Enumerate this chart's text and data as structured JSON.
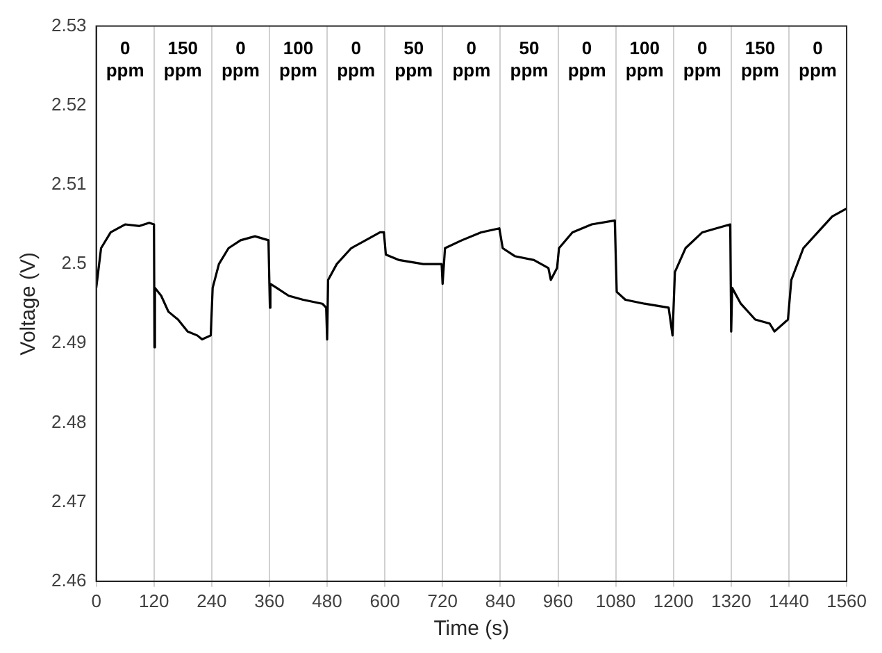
{
  "chart_data": {
    "type": "line",
    "xlabel": "Time (s)",
    "ylabel": "Voltage (V)",
    "xlim": [
      0,
      1560
    ],
    "xticks": [
      0,
      120,
      240,
      360,
      480,
      600,
      720,
      840,
      960,
      1080,
      1200,
      1320,
      1440,
      1560
    ],
    "ylim": [
      2.46,
      2.53
    ],
    "yticks": [
      2.46,
      2.47,
      2.48,
      2.49,
      2.5,
      2.51,
      2.52,
      2.53
    ],
    "grid": "x",
    "legend": false,
    "marker": "none",
    "line_style": "solid",
    "series": [
      {
        "color": "#000000",
        "x": [
          0,
          10,
          30,
          60,
          90,
          110,
          120,
          121,
          122,
          135,
          150,
          170,
          190,
          210,
          220,
          238,
          242,
          255,
          275,
          300,
          330,
          358,
          361,
          362,
          375,
          400,
          430,
          470,
          478,
          480,
          482,
          500,
          530,
          560,
          590,
          598,
          602,
          630,
          680,
          718,
          720,
          725,
          760,
          800,
          838,
          845,
          870,
          910,
          940,
          945,
          958,
          962,
          990,
          1030,
          1078,
          1082,
          1100,
          1140,
          1190,
          1198,
          1203,
          1225,
          1260,
          1318,
          1320,
          1322,
          1340,
          1370,
          1400,
          1410,
          1438,
          1445,
          1470,
          1500,
          1530,
          1560
        ],
        "values": [
          2.497,
          2.502,
          2.504,
          2.505,
          2.5048,
          2.5052,
          2.505,
          2.4895,
          2.497,
          2.496,
          2.494,
          2.493,
          2.4915,
          2.491,
          2.4905,
          2.491,
          2.497,
          2.5,
          2.502,
          2.503,
          2.5035,
          2.503,
          2.4945,
          2.4975,
          2.497,
          2.496,
          2.4955,
          2.495,
          2.4945,
          2.4905,
          2.498,
          2.5,
          2.502,
          2.503,
          2.504,
          2.504,
          2.5012,
          2.5005,
          2.5,
          2.5,
          2.4975,
          2.502,
          2.503,
          2.504,
          2.5045,
          2.502,
          2.501,
          2.5005,
          2.4995,
          2.498,
          2.4995,
          2.502,
          2.504,
          2.505,
          2.5055,
          2.4965,
          2.4955,
          2.495,
          2.4945,
          2.491,
          2.499,
          2.502,
          2.504,
          2.505,
          2.4915,
          2.497,
          2.495,
          2.493,
          2.4925,
          2.4915,
          2.493,
          2.498,
          2.502,
          2.504,
          2.506,
          2.507
        ]
      }
    ],
    "annotations": [
      "0 ppm",
      "150 ppm",
      "0 ppm",
      "100 ppm",
      "0 ppm",
      "50 ppm",
      "0 ppm",
      "50 ppm",
      "0 ppm",
      "100 ppm",
      "0 ppm",
      "150 ppm",
      "0 ppm"
    ]
  }
}
